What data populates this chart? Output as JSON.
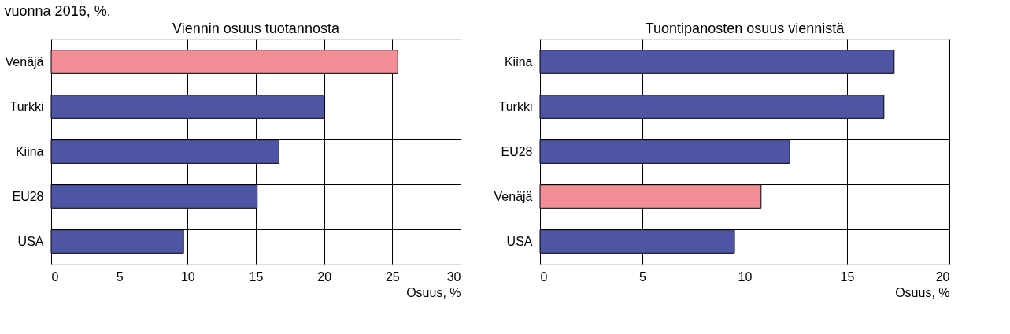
{
  "chart_data": [
    {
      "type": "bar",
      "orientation": "horizontal",
      "title": "Viennin osuus tuotannosta",
      "xlabel": "Osuus, %",
      "annotations": [
        "vuonna 2016, %."
      ],
      "categories": [
        "Venäjä",
        "Turkki",
        "Kiina",
        "EU28",
        "USA"
      ],
      "values": [
        25.4,
        20.0,
        16.7,
        15.1,
        9.7
      ],
      "colors": [
        "#f28e96",
        "#4f55a5",
        "#4f55a5",
        "#4f55a5",
        "#4f55a5"
      ],
      "xlim": [
        0,
        30
      ],
      "xticks": [
        0,
        5,
        10,
        15,
        20,
        25,
        30
      ],
      "grid": true,
      "legend": false
    },
    {
      "type": "bar",
      "orientation": "horizontal",
      "title": "Tuontipanosten osuus viennistä",
      "xlabel": "Osuus, %",
      "categories": [
        "Kiina",
        "Turkki",
        "EU28",
        "Venäjä",
        "USA"
      ],
      "values": [
        17.3,
        16.8,
        12.2,
        10.8,
        9.5
      ],
      "colors": [
        "#4f55a5",
        "#4f55a5",
        "#4f55a5",
        "#f28e96",
        "#4f55a5"
      ],
      "xlim": [
        0,
        20
      ],
      "xticks": [
        0,
        5,
        10,
        15,
        20
      ],
      "grid": true,
      "legend": false
    }
  ]
}
